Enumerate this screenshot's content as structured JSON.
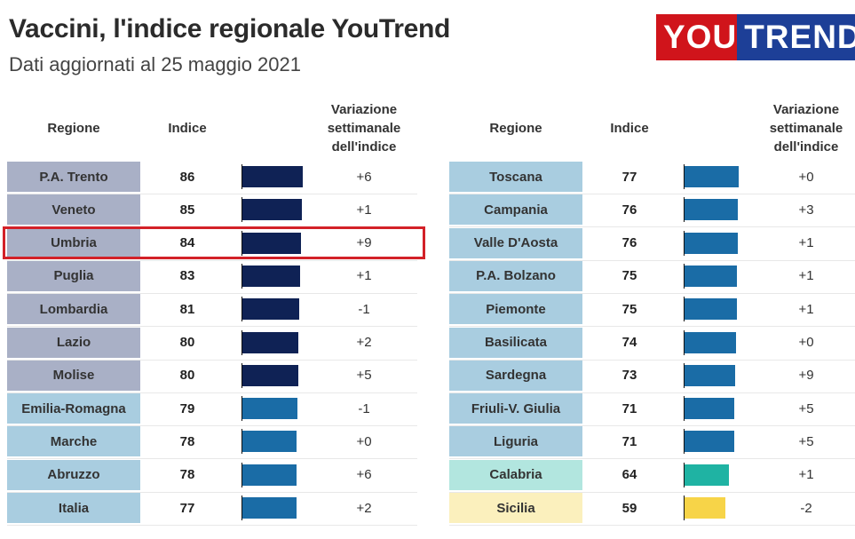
{
  "header": {
    "title": "Vaccini, l'indice regionale YouTrend",
    "subtitle": "Dati aggiornati al 25 maggio 2021"
  },
  "logo": {
    "part1": "YOU",
    "part2": "TREND"
  },
  "columns": {
    "region": "Regione",
    "index": "Indice",
    "variation": "Variazione settimanale dell'indice"
  },
  "colors": {
    "dark_navy": "#0f2255",
    "mid_blue": "#1a6ca6",
    "teal": "#1fb3a3",
    "yellow": "#f7d448",
    "label_navy": "#a9b0c6",
    "label_blue": "#a9cde0",
    "label_teal": "#b2e6df",
    "label_yellow": "#fbf0bd",
    "highlight": "#d32128"
  },
  "highlighted_region": "Umbria",
  "chart_data": {
    "type": "table",
    "title": "Vaccini, l'indice regionale YouTrend",
    "subtitle": "Dati aggiornati al 25 maggio 2021",
    "bar_scale_max": 100,
    "tables": [
      {
        "rows": [
          {
            "region": "P.A. Trento",
            "index": 86,
            "variation": "+6",
            "tier": "dark_navy"
          },
          {
            "region": "Veneto",
            "index": 85,
            "variation": "+1",
            "tier": "dark_navy"
          },
          {
            "region": "Umbria",
            "index": 84,
            "variation": "+9",
            "tier": "dark_navy"
          },
          {
            "region": "Puglia",
            "index": 83,
            "variation": "+1",
            "tier": "dark_navy"
          },
          {
            "region": "Lombardia",
            "index": 81,
            "variation": "-1",
            "tier": "dark_navy"
          },
          {
            "region": "Lazio",
            "index": 80,
            "variation": "+2",
            "tier": "dark_navy"
          },
          {
            "region": "Molise",
            "index": 80,
            "variation": "+5",
            "tier": "dark_navy"
          },
          {
            "region": "Emilia-Romagna",
            "index": 79,
            "variation": "-1",
            "tier": "mid_blue"
          },
          {
            "region": "Marche",
            "index": 78,
            "variation": "+0",
            "tier": "mid_blue"
          },
          {
            "region": "Abruzzo",
            "index": 78,
            "variation": "+6",
            "tier": "mid_blue"
          },
          {
            "region": "Italia",
            "index": 77,
            "variation": "+2",
            "tier": "mid_blue"
          }
        ]
      },
      {
        "rows": [
          {
            "region": "Toscana",
            "index": 77,
            "variation": "+0",
            "tier": "mid_blue"
          },
          {
            "region": "Campania",
            "index": 76,
            "variation": "+3",
            "tier": "mid_blue"
          },
          {
            "region": "Valle D'Aosta",
            "index": 76,
            "variation": "+1",
            "tier": "mid_blue"
          },
          {
            "region": "P.A. Bolzano",
            "index": 75,
            "variation": "+1",
            "tier": "mid_blue"
          },
          {
            "region": "Piemonte",
            "index": 75,
            "variation": "+1",
            "tier": "mid_blue"
          },
          {
            "region": "Basilicata",
            "index": 74,
            "variation": "+0",
            "tier": "mid_blue"
          },
          {
            "region": "Sardegna",
            "index": 73,
            "variation": "+9",
            "tier": "mid_blue"
          },
          {
            "region": "Friuli-V. Giulia",
            "index": 71,
            "variation": "+5",
            "tier": "mid_blue"
          },
          {
            "region": "Liguria",
            "index": 71,
            "variation": "+5",
            "tier": "mid_blue"
          },
          {
            "region": "Calabria",
            "index": 64,
            "variation": "+1",
            "tier": "teal"
          },
          {
            "region": "Sicilia",
            "index": 59,
            "variation": "-2",
            "tier": "yellow"
          }
        ]
      }
    ]
  }
}
